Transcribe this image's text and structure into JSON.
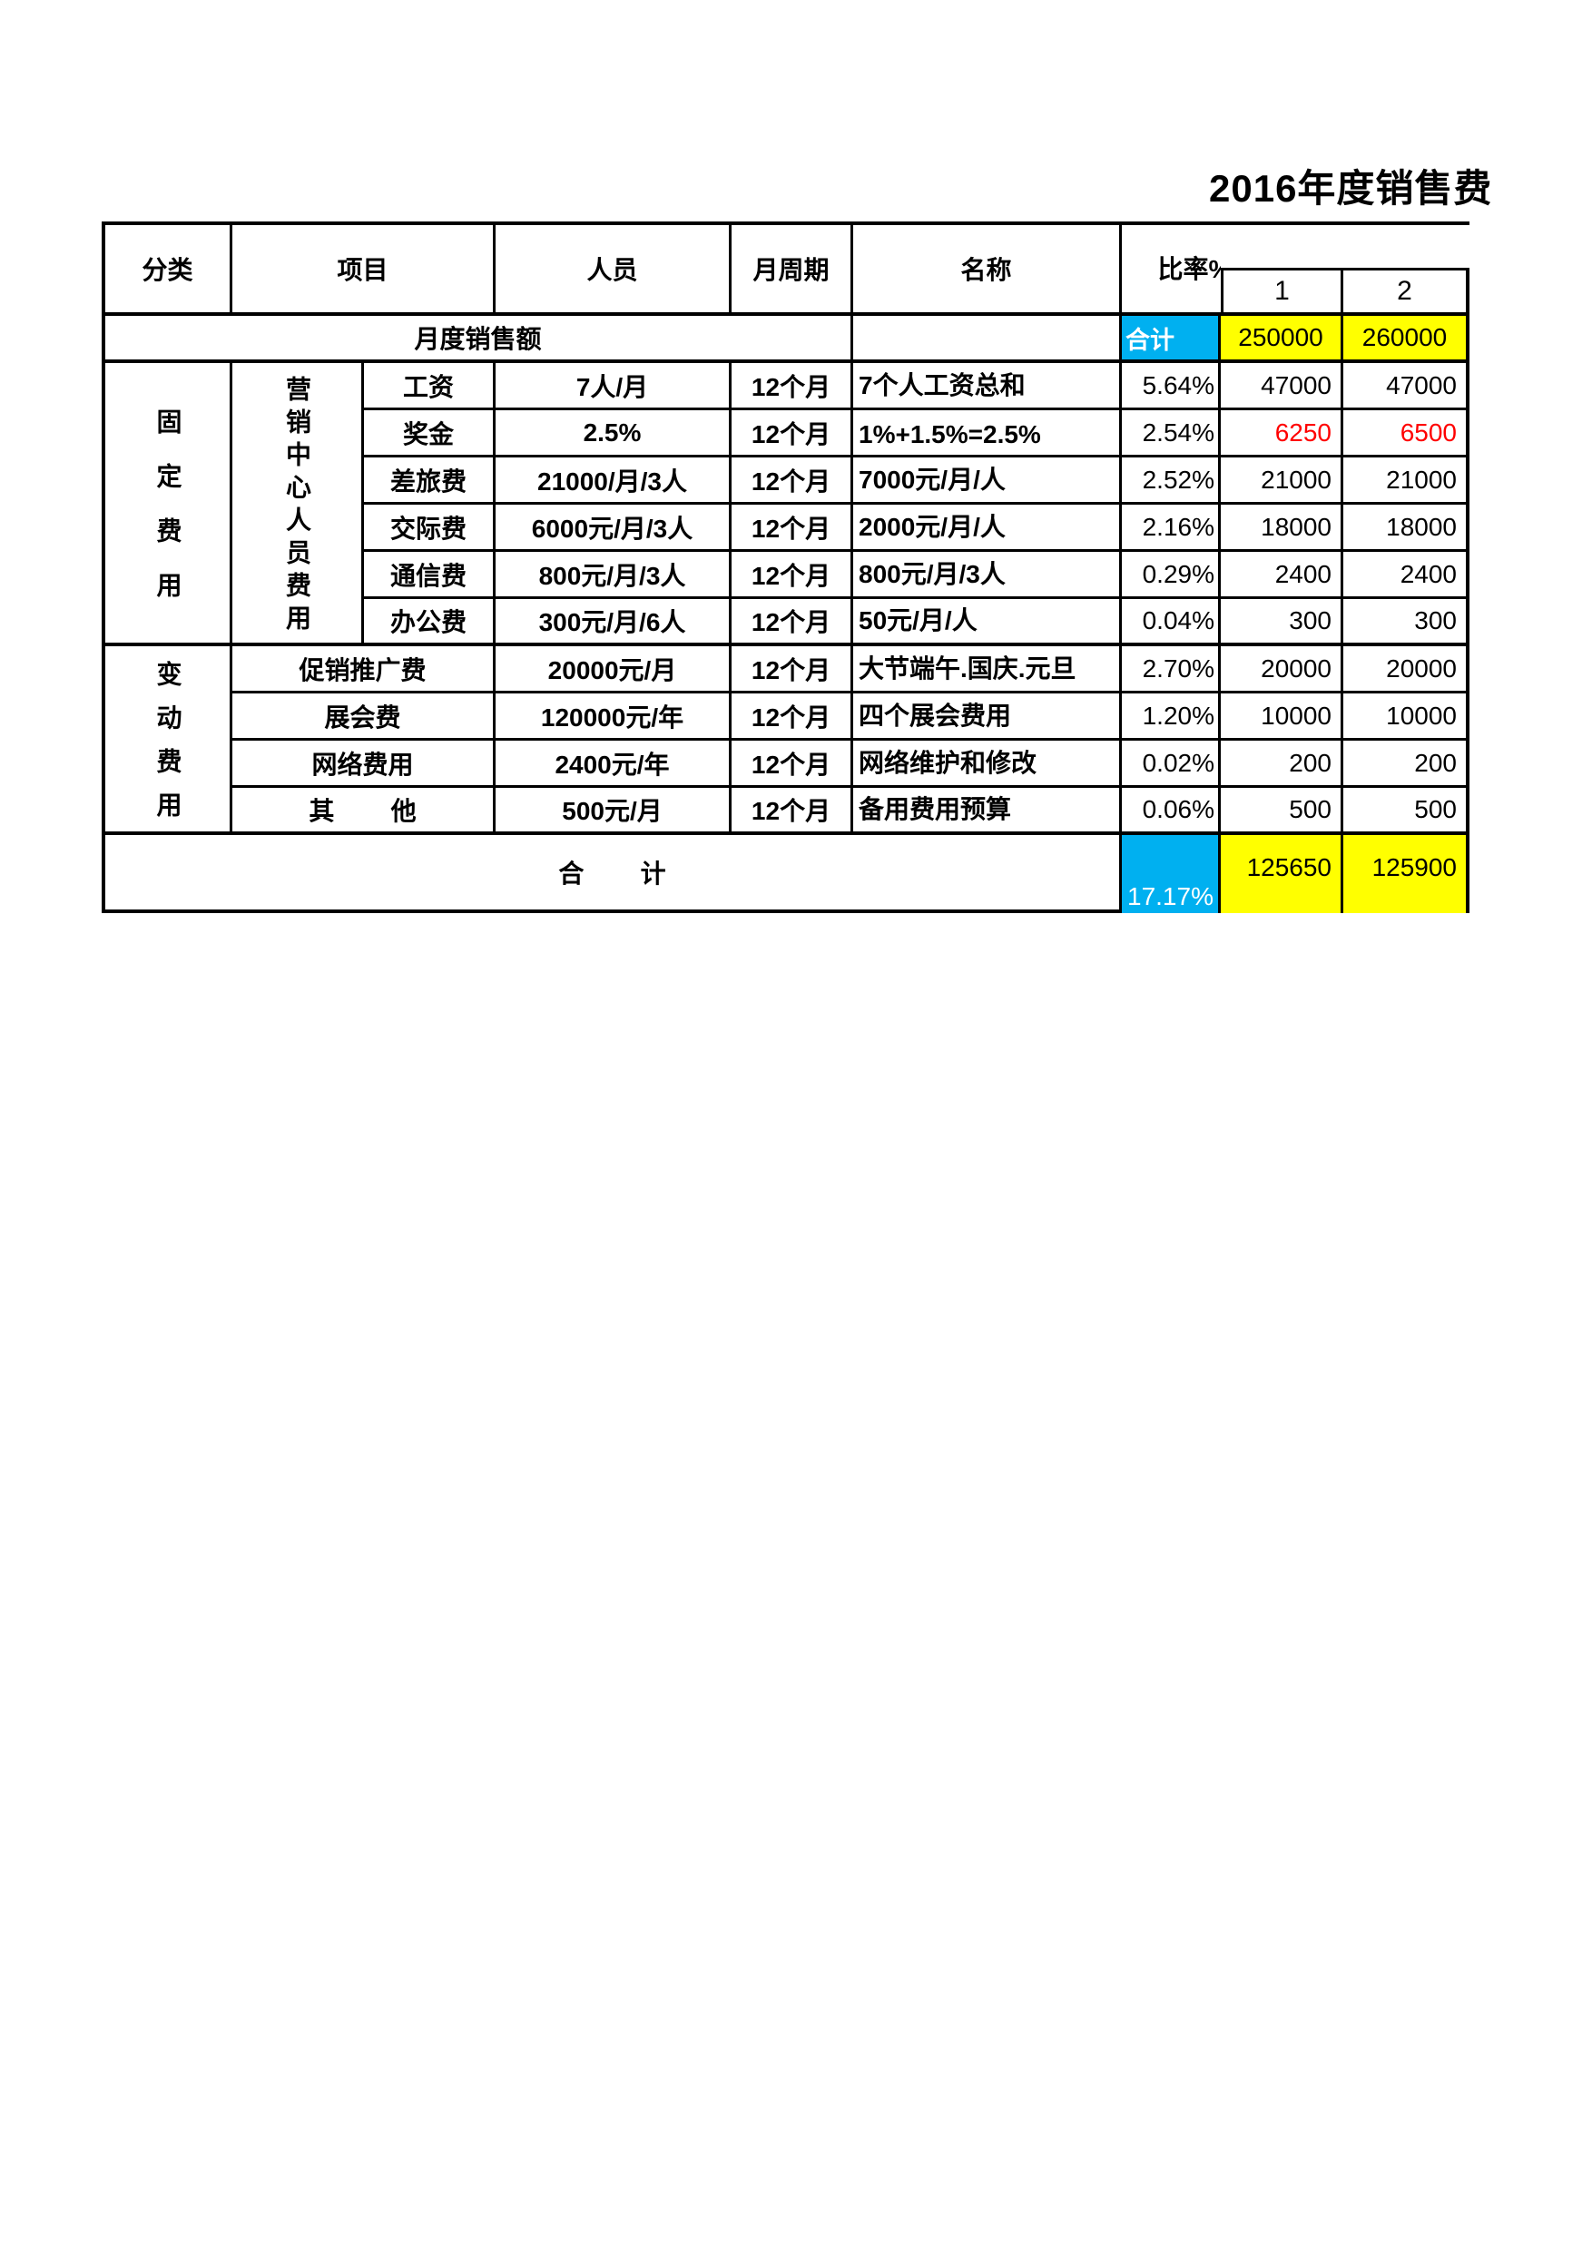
{
  "title": "2016年度销售费",
  "colors": {
    "accent_cyan": "#00B0F0",
    "highlight_yellow": "#FFFF00",
    "alert_red": "#FF0000",
    "border_black": "#000000"
  },
  "header": {
    "category": "分类",
    "item": "项目",
    "personnel": "人员",
    "cycle": "月周期",
    "name": "名称",
    "ratio": "比率%",
    "col1": "1",
    "col2": "2"
  },
  "monthly_sales": {
    "label": "月度销售额",
    "total_label": "合计",
    "values": [
      "250000",
      "260000"
    ]
  },
  "fixed": {
    "category": "固定费用",
    "subcategory": "营销中心人员费用",
    "rows": [
      {
        "item": "工资",
        "personnel": "7人/月",
        "cycle": "12个月",
        "name": "7个人工资总和",
        "ratio": "5.64%",
        "v1": "47000",
        "v2": "47000"
      },
      {
        "item": "奖金",
        "personnel": "2.5%",
        "cycle": "12个月",
        "name": "1%+1.5%=2.5%",
        "ratio": "2.54%",
        "v1": "6250",
        "v2": "6500"
      },
      {
        "item": "差旅费",
        "personnel": "21000/月/3人",
        "cycle": "12个月",
        "name": "7000元/月/人",
        "ratio": "2.52%",
        "v1": "21000",
        "v2": "21000"
      },
      {
        "item": "交际费",
        "personnel": "6000元/月/3人",
        "cycle": "12个月",
        "name": "2000元/月/人",
        "ratio": "2.16%",
        "v1": "18000",
        "v2": "18000"
      },
      {
        "item": "通信费",
        "personnel": "800元/月/3人",
        "cycle": "12个月",
        "name": "800元/月/3人",
        "ratio": "0.29%",
        "v1": "2400",
        "v2": "2400"
      },
      {
        "item": "办公费",
        "personnel": "300元/月/6人",
        "cycle": "12个月",
        "name": "50元/月/人",
        "ratio": "0.04%",
        "v1": "300",
        "v2": "300"
      }
    ]
  },
  "variable": {
    "category": "变动费用",
    "rows": [
      {
        "item": "促销推广费",
        "personnel": "20000元/月",
        "cycle": "12个月",
        "name": "大节端午.国庆.元旦",
        "ratio": "2.70%",
        "v1": "20000",
        "v2": "20000"
      },
      {
        "item": "展会费",
        "personnel": "120000元/年",
        "cycle": "12个月",
        "name": "四个展会费用",
        "ratio": "1.20%",
        "v1": "10000",
        "v2": "10000"
      },
      {
        "item": "网络费用",
        "personnel": "2400元/年",
        "cycle": "12个月",
        "name": "网络维护和修改",
        "ratio": "0.02%",
        "v1": "200",
        "v2": "200"
      },
      {
        "item": "其        他",
        "personnel": "500元/月",
        "cycle": "12个月",
        "name": "备用费用预算",
        "ratio": "0.06%",
        "v1": "500",
        "v2": "500"
      }
    ]
  },
  "total": {
    "label": "合        计",
    "ratio": "17.17%",
    "values": [
      "125650",
      "125900"
    ]
  }
}
